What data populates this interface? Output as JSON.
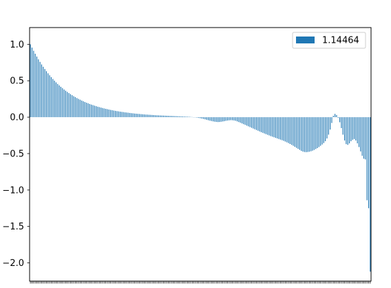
{
  "chart_data": {
    "type": "bar",
    "x_tick_labels_legible": false,
    "ylim": [
      -2.25,
      1.23
    ],
    "yticks": [
      1.0,
      0.5,
      0.0,
      -0.5,
      -1.0,
      -1.5,
      -2.0
    ],
    "ytick_labels": [
      "1.0",
      "0.5",
      "0.0",
      "−0.5",
      "−1.0",
      "−1.5",
      "−2.0"
    ],
    "grid": false,
    "legend_position": "top-right",
    "bar_color": "#1f77b4",
    "series": [
      {
        "name": "1.14464",
        "values": [
          1.0,
          0.955,
          0.912,
          0.871,
          0.832,
          0.794,
          0.759,
          0.724,
          0.692,
          0.661,
          0.631,
          0.602,
          0.575,
          0.549,
          0.525,
          0.501,
          0.478,
          0.457,
          0.436,
          0.417,
          0.398,
          0.38,
          0.363,
          0.347,
          0.331,
          0.316,
          0.302,
          0.288,
          0.275,
          0.263,
          0.251,
          0.24,
          0.229,
          0.218,
          0.208,
          0.199,
          0.19,
          0.181,
          0.173,
          0.166,
          0.158,
          0.151,
          0.144,
          0.138,
          0.132,
          0.126,
          0.12,
          0.115,
          0.11,
          0.105,
          0.1,
          0.096,
          0.091,
          0.087,
          0.083,
          0.08,
          0.076,
          0.073,
          0.07,
          0.066,
          0.064,
          0.061,
          0.058,
          0.055,
          0.053,
          0.05,
          0.048,
          0.046,
          0.044,
          0.042,
          0.04,
          0.038,
          0.036,
          0.035,
          0.033,
          0.032,
          0.03,
          0.029,
          0.027,
          0.026,
          0.025,
          0.024,
          0.023,
          0.022,
          0.021,
          0.02,
          0.019,
          0.018,
          0.017,
          0.016,
          0.015,
          0.014,
          0.013,
          0.012,
          0.011,
          0.01,
          0.009,
          0.008,
          0.007,
          0.006,
          0.004,
          0.002,
          0.0,
          -0.003,
          -0.006,
          -0.01,
          -0.014,
          -0.019,
          -0.024,
          -0.03,
          -0.036,
          -0.042,
          -0.048,
          -0.053,
          -0.058,
          -0.062,
          -0.065,
          -0.067,
          -0.066,
          -0.063,
          -0.059,
          -0.055,
          -0.05,
          -0.046,
          -0.043,
          -0.041,
          -0.042,
          -0.045,
          -0.05,
          -0.058,
          -0.067,
          -0.076,
          -0.086,
          -0.096,
          -0.106,
          -0.116,
          -0.126,
          -0.136,
          -0.146,
          -0.156,
          -0.166,
          -0.176,
          -0.186,
          -0.196,
          -0.206,
          -0.215,
          -0.224,
          -0.233,
          -0.242,
          -0.251,
          -0.26,
          -0.268,
          -0.276,
          -0.284,
          -0.292,
          -0.3,
          -0.308,
          -0.316,
          -0.325,
          -0.335,
          -0.345,
          -0.356,
          -0.368,
          -0.38,
          -0.393,
          -0.407,
          -0.421,
          -0.435,
          -0.449,
          -0.462,
          -0.472,
          -0.478,
          -0.48,
          -0.478,
          -0.474,
          -0.468,
          -0.46,
          -0.45,
          -0.438,
          -0.425,
          -0.41,
          -0.393,
          -0.375,
          -0.355,
          -0.33,
          -0.292,
          -0.24,
          -0.17,
          -0.08,
          0.02,
          0.045,
          0.03,
          -0.01,
          -0.07,
          -0.15,
          -0.24,
          -0.32,
          -0.37,
          -0.38,
          -0.36,
          -0.33,
          -0.31,
          -0.3,
          -0.32,
          -0.36,
          -0.41,
          -0.47,
          -0.53,
          -0.57,
          -0.58,
          -1.14,
          -1.25,
          -2.12
        ]
      }
    ]
  }
}
